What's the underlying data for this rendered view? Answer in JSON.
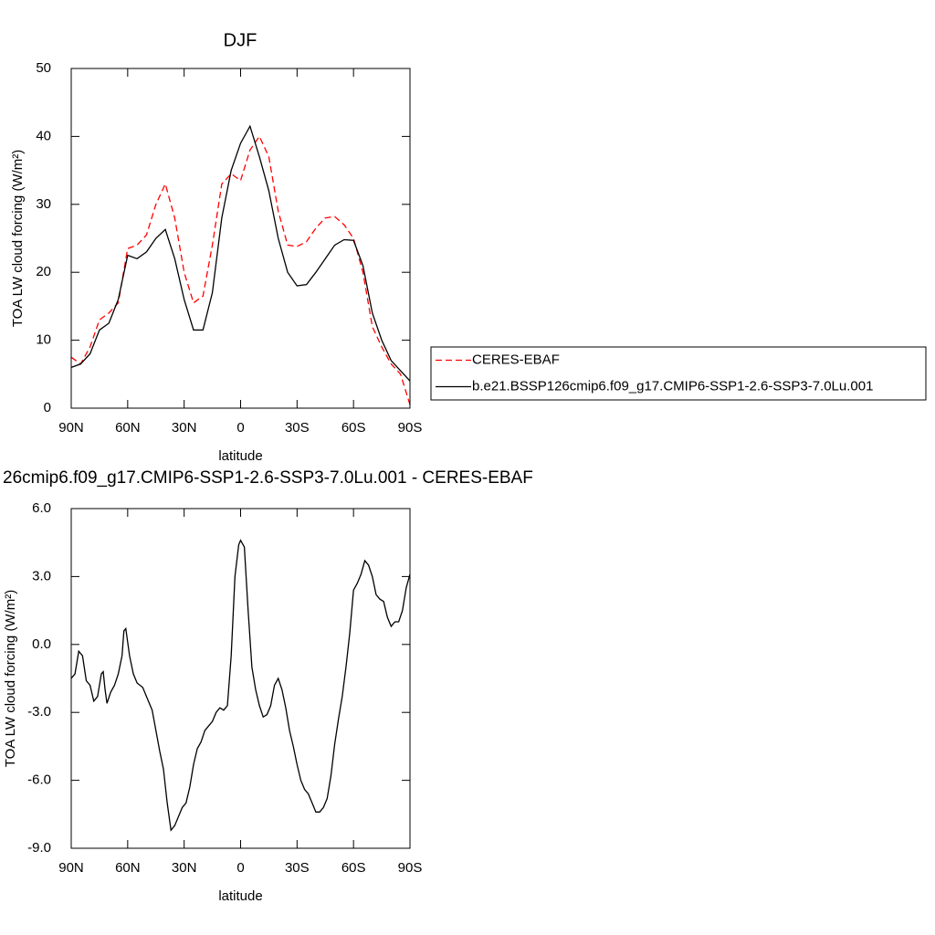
{
  "chart_data": [
    {
      "type": "line",
      "title": "DJF",
      "xlabel": "latitude",
      "ylabel": "TOA LW cloud forcing (W/m²)",
      "x": [
        90,
        85,
        80,
        75,
        70,
        65,
        60,
        55,
        50,
        45,
        40,
        35,
        30,
        25,
        20,
        15,
        10,
        5,
        0,
        -5,
        -10,
        -15,
        -20,
        -25,
        -30,
        -35,
        -40,
        -45,
        -50,
        -55,
        -60,
        -65,
        -70,
        -75,
        -80,
        -85,
        -90
      ],
      "series": [
        {
          "name": "CERES-EBAF",
          "color": "#ff0000",
          "dash": "dashed",
          "values": [
            7.5,
            6.5,
            9,
            13,
            14,
            15.5,
            23.5,
            24,
            25.5,
            30,
            33,
            28,
            20,
            15.5,
            16.5,
            24,
            33,
            34.5,
            33.5,
            38,
            40,
            37,
            29,
            24,
            23.8,
            24.5,
            26.5,
            28,
            28.2,
            27,
            25,
            20,
            12,
            9,
            6.5,
            5,
            0.5
          ]
        },
        {
          "name": "b.e21.BSSP126cmip6.f09_g17.CMIP6-SSP1-2.6-SSP3-7.0Lu.001",
          "color": "#000000",
          "dash": "solid",
          "values": [
            6,
            6.5,
            8,
            11.5,
            12.5,
            16,
            22.5,
            22,
            23,
            25,
            26.3,
            22,
            16,
            11.5,
            11.5,
            17,
            28,
            35,
            39,
            41.5,
            37,
            32,
            25,
            20,
            18,
            18.2,
            20,
            22,
            24,
            24.8,
            24.7,
            21,
            14,
            10,
            7,
            5.5,
            4
          ]
        }
      ],
      "xlim": [
        90,
        -90
      ],
      "ylim": [
        0,
        50
      ],
      "xticks": [
        {
          "value": 90,
          "label": "90N"
        },
        {
          "value": 60,
          "label": "60N"
        },
        {
          "value": 30,
          "label": "30N"
        },
        0,
        {
          "value": -30,
          "label": "30S"
        },
        {
          "value": -60,
          "label": "60S"
        },
        {
          "value": -90,
          "label": "90S"
        }
      ],
      "yticks": [
        0,
        10,
        20,
        30,
        40,
        50
      ],
      "legend": "right",
      "grid": false
    },
    {
      "type": "line",
      "title": "26cmip6.f09_g17.CMIP6-SSP1-2.6-SSP3-7.0Lu.001 - CERES-EBAF",
      "xlabel": "latitude",
      "ylabel": "TOA LW cloud forcing (W/m²)",
      "x": [
        90,
        88,
        86,
        84,
        82,
        80,
        78,
        76,
        74,
        73,
        72,
        71,
        69,
        67,
        65,
        63,
        62,
        61,
        59,
        57,
        55,
        52,
        50,
        47,
        45,
        43,
        41,
        39,
        37,
        35,
        33,
        31,
        29,
        27,
        25,
        23,
        21,
        19,
        17,
        15,
        13,
        11,
        9,
        7,
        5,
        3,
        1,
        0,
        -2,
        -4,
        -6,
        -8,
        -10,
        -12,
        -14,
        -16,
        -18,
        -20,
        -22,
        -24,
        -26,
        -28,
        -30,
        -32,
        -34,
        -36,
        -38,
        -40,
        -42,
        -44,
        -46,
        -48,
        -50,
        -52,
        -54,
        -56,
        -58,
        -60,
        -62,
        -64,
        -66,
        -68,
        -70,
        -72,
        -74,
        -76,
        -78,
        -80,
        -82,
        -84,
        -86,
        -88,
        -90
      ],
      "values": [
        -1.5,
        -1.3,
        -0.3,
        -0.5,
        -1.6,
        -1.8,
        -2.5,
        -2.3,
        -1.3,
        -1.2,
        -2.0,
        -2.6,
        -2.1,
        -1.8,
        -1.3,
        -0.5,
        0.6,
        0.7,
        -0.5,
        -1.3,
        -1.7,
        -1.9,
        -2.3,
        -2.9,
        -3.8,
        -4.7,
        -5.5,
        -7.0,
        -8.2,
        -8.0,
        -7.6,
        -7.2,
        -7.0,
        -6.3,
        -5.3,
        -4.6,
        -4.3,
        -3.8,
        -3.6,
        -3.4,
        -3.0,
        -2.8,
        -2.9,
        -2.7,
        -0.5,
        3.0,
        4.4,
        4.6,
        4.3,
        1.5,
        -1.0,
        -2.0,
        -2.7,
        -3.2,
        -3.1,
        -2.7,
        -1.8,
        -1.5,
        -2.0,
        -2.8,
        -3.8,
        -4.5,
        -5.3,
        -6.0,
        -6.4,
        -6.6,
        -7.0,
        -7.4,
        -7.4,
        -7.2,
        -6.8,
        -5.8,
        -4.4,
        -3.3,
        -2.3,
        -1.0,
        0.5,
        2.4,
        2.7,
        3.1,
        3.7,
        3.5,
        3.0,
        2.2,
        2.0,
        1.9,
        1.2,
        0.8,
        1.0,
        1.0,
        1.5,
        2.5,
        3.1
      ],
      "color": "#000000",
      "xlim": [
        90,
        -90
      ],
      "ylim": [
        -9,
        6
      ],
      "xticks": [
        {
          "value": 90,
          "label": "90N"
        },
        {
          "value": 60,
          "label": "60N"
        },
        {
          "value": 30,
          "label": "30N"
        },
        0,
        {
          "value": -30,
          "label": "30S"
        },
        {
          "value": -60,
          "label": "60S"
        },
        {
          "value": -90,
          "label": "90S"
        }
      ],
      "yticks": [
        {
          "value": 6,
          "label": "6.0"
        },
        {
          "value": 3,
          "label": "3.0"
        },
        {
          "value": 0,
          "label": "0.0"
        },
        {
          "value": -3,
          "label": "-3.0"
        },
        {
          "value": -6,
          "label": "-6.0"
        },
        {
          "value": -9,
          "label": "-9.0"
        }
      ],
      "grid": false
    }
  ]
}
